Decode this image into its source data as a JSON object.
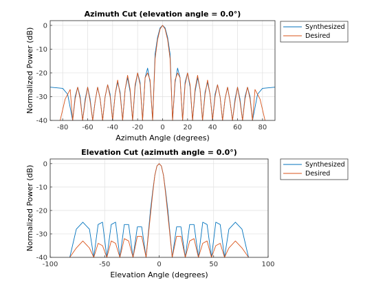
{
  "chart_data": [
    {
      "type": "line",
      "title": "Azimuth Cut (elevation angle = 0.0°)",
      "xlabel": "Azimuth Angle (degrees)",
      "ylabel": "Normalized Power (dB)",
      "xlim": [
        -90,
        90
      ],
      "ylim": [
        -40,
        2
      ],
      "xticks": [
        -80,
        -60,
        -40,
        -20,
        0,
        20,
        40,
        60,
        80
      ],
      "yticks": [
        0,
        -10,
        -20,
        -30,
        -40
      ],
      "grid": true,
      "legend_placement": "outside-top-right",
      "series": [
        {
          "name": "Synthesized",
          "color": "#0072bd",
          "x": [
            -90,
            -80,
            -76,
            -72,
            -70,
            -68,
            -66,
            -64,
            -62,
            -60,
            -58,
            -56,
            -54,
            -52,
            -50,
            -48,
            -46,
            -44,
            -42,
            -40,
            -38,
            -36,
            -34,
            -32,
            -30,
            -28,
            -26,
            -24,
            -22,
            -20,
            -18,
            -16,
            -14,
            -12,
            -10,
            -8,
            -6,
            -4,
            -2,
            0,
            2,
            4,
            6,
            8,
            10,
            12,
            14,
            16,
            18,
            20,
            22,
            24,
            26,
            28,
            30,
            32,
            34,
            36,
            38,
            40,
            42,
            44,
            46,
            48,
            50,
            52,
            54,
            56,
            58,
            60,
            62,
            64,
            66,
            68,
            70,
            72,
            76,
            80,
            90
          ],
          "y": [
            -26,
            -26.5,
            -29,
            -40,
            -30,
            -26,
            -30,
            -40,
            -31,
            -26,
            -31,
            -40,
            -32,
            -26,
            -31,
            -40,
            -30,
            -25,
            -29,
            -40,
            -29,
            -24,
            -28,
            -40,
            -27,
            -22,
            -28,
            -40,
            -26,
            -20,
            -24,
            -40,
            -22,
            -18,
            -24,
            -40,
            -12,
            -5,
            -1,
            0,
            -1,
            -5,
            -12,
            -40,
            -24,
            -18,
            -22,
            -40,
            -24,
            -20,
            -26,
            -40,
            -28,
            -22,
            -27,
            -40,
            -28,
            -24,
            -29,
            -40,
            -29,
            -25,
            -30,
            -40,
            -31,
            -26,
            -32,
            -40,
            -31,
            -26,
            -31,
            -40,
            -30,
            -26,
            -30,
            -40,
            -29,
            -26.5,
            -26
          ]
        },
        {
          "name": "Desired",
          "color": "#d95319",
          "x": [
            -82,
            -78,
            -74,
            -72,
            -70,
            -68,
            -66,
            -64,
            -62,
            -60,
            -58,
            -56,
            -54,
            -52,
            -50,
            -48,
            -46,
            -44,
            -42,
            -40,
            -38,
            -36,
            -34,
            -32,
            -30,
            -28,
            -26,
            -24,
            -22,
            -20,
            -18,
            -16,
            -14,
            -12,
            -10,
            -8,
            -6,
            -4,
            -2,
            0,
            2,
            4,
            6,
            8,
            10,
            12,
            14,
            16,
            18,
            20,
            22,
            24,
            26,
            28,
            30,
            32,
            34,
            36,
            38,
            40,
            42,
            44,
            46,
            48,
            50,
            52,
            54,
            56,
            58,
            60,
            62,
            64,
            66,
            68,
            70,
            72,
            74,
            78,
            82
          ],
          "y": [
            -40,
            -31,
            -27,
            -40,
            -31,
            -26,
            -31,
            -40,
            -32,
            -26,
            -32,
            -40,
            -32,
            -26,
            -31,
            -40,
            -30,
            -25,
            -30,
            -40,
            -29,
            -23,
            -29,
            -40,
            -27,
            -21,
            -27,
            -40,
            -25,
            -20,
            -25,
            -40,
            -22,
            -20,
            -23,
            -40,
            -14,
            -6,
            -1.5,
            0,
            -1.5,
            -6,
            -14,
            -40,
            -23,
            -20,
            -22,
            -40,
            -25,
            -20,
            -25,
            -40,
            -27,
            -21,
            -27,
            -40,
            -29,
            -23,
            -29,
            -40,
            -30,
            -25,
            -30,
            -40,
            -31,
            -26,
            -32,
            -40,
            -32,
            -26,
            -32,
            -40,
            -31,
            -26,
            -31,
            -40,
            -27,
            -31,
            -40
          ]
        }
      ]
    },
    {
      "type": "line",
      "title": "Elevation Cut (azimuth angle = 0.0°)",
      "xlabel": "Elevation Angle (degrees)",
      "ylabel": "Normalized Power (dB)",
      "xlim": [
        -100,
        100
      ],
      "ylim": [
        -40,
        2
      ],
      "xticks": [
        -100,
        -50,
        0,
        50,
        100
      ],
      "yticks": [
        0,
        -10,
        -20,
        -30,
        -40
      ],
      "grid": true,
      "legend_placement": "outside-top-right",
      "series": [
        {
          "name": "Synthesized",
          "color": "#0072bd",
          "x": [
            -82,
            -76,
            -70,
            -64,
            -60,
            -56,
            -52,
            -48,
            -44,
            -40,
            -36,
            -32,
            -28,
            -24,
            -20,
            -16,
            -12,
            -8,
            -6,
            -4,
            -2,
            0,
            2,
            4,
            6,
            8,
            12,
            16,
            20,
            24,
            28,
            32,
            36,
            40,
            44,
            48,
            52,
            56,
            60,
            64,
            70,
            76,
            82
          ],
          "y": [
            -40,
            -28,
            -25,
            -28,
            -40,
            -26,
            -25,
            -40,
            -26,
            -25,
            -40,
            -26,
            -26,
            -40,
            -27,
            -27,
            -40,
            -20,
            -12,
            -5,
            -1,
            0,
            -1,
            -5,
            -12,
            -20,
            -40,
            -27,
            -27,
            -40,
            -26,
            -26,
            -40,
            -25,
            -26,
            -40,
            -25,
            -26,
            -40,
            -28,
            -25,
            -28,
            -40
          ]
        },
        {
          "name": "Desired",
          "color": "#d95319",
          "x": [
            -82,
            -76,
            -70,
            -64,
            -60,
            -56,
            -52,
            -48,
            -44,
            -40,
            -36,
            -32,
            -28,
            -24,
            -20,
            -16,
            -12,
            -8,
            -6,
            -4,
            -2,
            0,
            2,
            4,
            6,
            8,
            12,
            16,
            20,
            24,
            28,
            32,
            36,
            40,
            44,
            48,
            52,
            56,
            60,
            64,
            70,
            76,
            82
          ],
          "y": [
            -40,
            -36,
            -33,
            -36,
            -40,
            -34,
            -35,
            -40,
            -33,
            -34,
            -40,
            -32,
            -33,
            -40,
            -31,
            -31,
            -40,
            -22,
            -13,
            -5,
            -1,
            0,
            -1,
            -5,
            -13,
            -22,
            -40,
            -31,
            -31,
            -40,
            -33,
            -32,
            -40,
            -34,
            -33,
            -40,
            -35,
            -34,
            -40,
            -36,
            -33,
            -36,
            -40
          ]
        }
      ]
    }
  ]
}
